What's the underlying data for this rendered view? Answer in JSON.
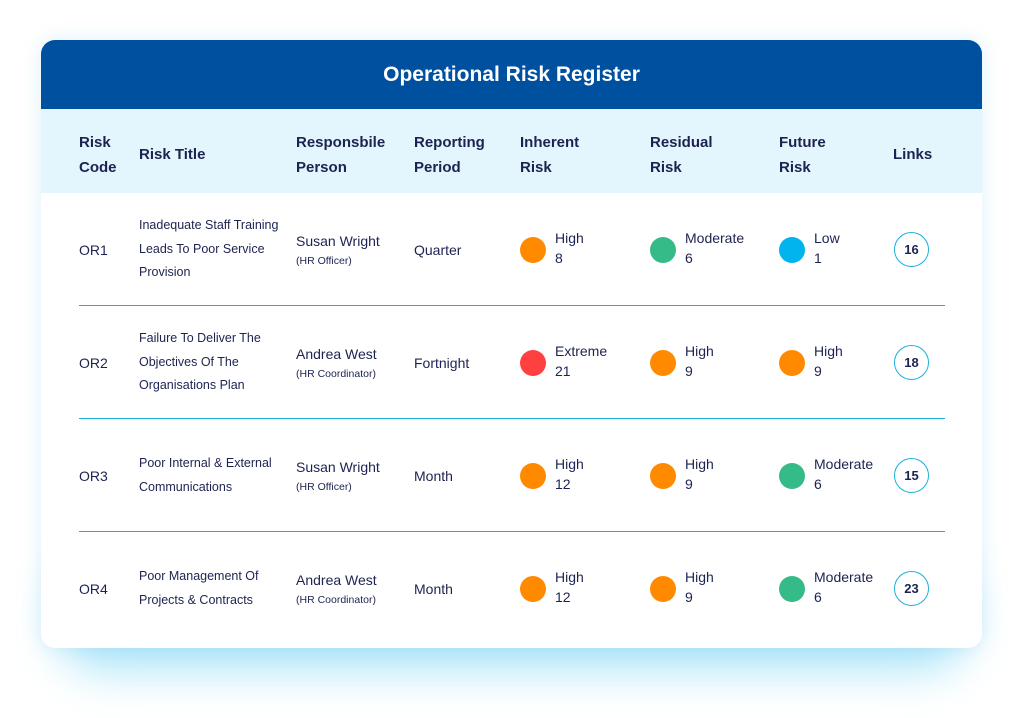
{
  "title": "Operational Risk Register",
  "colors": {
    "header": "#0050a0",
    "header_band": "#e3f5fd",
    "divider": "#1ab0e0",
    "High": "#ff8a00",
    "Moderate": "#35bb88",
    "Low": "#00b4ee",
    "Extreme": "#ff4040"
  },
  "columns": [
    {
      "line1": "Risk",
      "line2": "Code"
    },
    {
      "line1": "Risk Title",
      "line2": ""
    },
    {
      "line1": "Responsbile",
      "line2": "Person"
    },
    {
      "line1": "Reporting",
      "line2": "Period"
    },
    {
      "line1": "Inherent",
      "line2": "Risk"
    },
    {
      "line1": "Residual",
      "line2": "Risk"
    },
    {
      "line1": "Future",
      "line2": "Risk"
    },
    {
      "line1": "Links",
      "line2": ""
    }
  ],
  "rows": [
    {
      "code": "OR1",
      "title": "Inadequate Staff Training Leads To Poor Service Provision",
      "person": "Susan Wright",
      "role": "(HR Officer)",
      "period": "Quarter",
      "inherent": {
        "level": "High",
        "score": "8"
      },
      "residual": {
        "level": "Moderate",
        "score": "6"
      },
      "future": {
        "level": "Low",
        "score": "1"
      },
      "links": "16"
    },
    {
      "code": "OR2",
      "title": "Failure To Deliver The Objectives Of The Organisations Plan",
      "person": "Andrea West",
      "role": "(HR Coordinator)",
      "period": "Fortnight",
      "inherent": {
        "level": "Extreme",
        "score": "21"
      },
      "residual": {
        "level": "High",
        "score": "9"
      },
      "future": {
        "level": "High",
        "score": "9"
      },
      "links": "18"
    },
    {
      "code": "OR3",
      "title": "Poor Internal & External Communications",
      "person": "Susan Wright",
      "role": "(HR Officer)",
      "period": "Month",
      "inherent": {
        "level": "High",
        "score": "12"
      },
      "residual": {
        "level": "High",
        "score": "9"
      },
      "future": {
        "level": "Moderate",
        "score": "6"
      },
      "links": "15"
    },
    {
      "code": "OR4",
      "title": "Poor Management Of Projects & Contracts",
      "person": "Andrea West",
      "role": "(HR Coordinator)",
      "period": "Month",
      "inherent": {
        "level": "High",
        "score": "12"
      },
      "residual": {
        "level": "High",
        "score": "9"
      },
      "future": {
        "level": "Moderate",
        "score": "6"
      },
      "links": "23"
    }
  ]
}
